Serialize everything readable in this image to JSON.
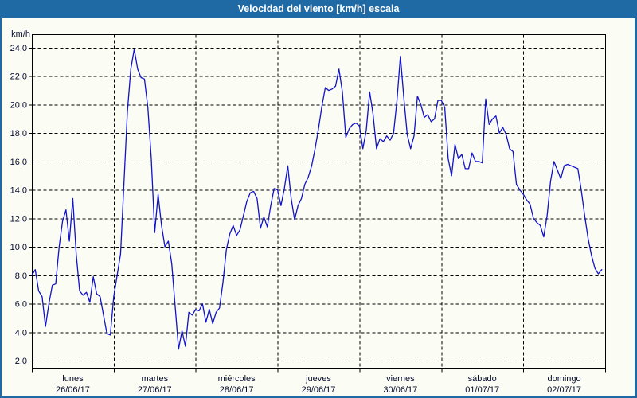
{
  "window": {
    "title": "Velocidad del viento [km/h] escala"
  },
  "chart_data": {
    "type": "line",
    "title": "Velocidad del viento [km/h] escala",
    "xlabel": "",
    "ylabel": "km/h",
    "ylim": [
      2,
      24
    ],
    "y_tick_step": 2,
    "y_tick_labels": [
      "24,0",
      "22,0",
      "20,0",
      "18,0",
      "16,0",
      "14,0",
      "12,0",
      "10,0",
      "8,0",
      "6,0",
      "4,0",
      "2,0"
    ],
    "grid": "dashed-horizontal-and-vertical",
    "legend_position": "none",
    "x_days": [
      {
        "name": "lunes",
        "date": "26/06/17"
      },
      {
        "name": "martes",
        "date": "27/06/17"
      },
      {
        "name": "miércoles",
        "date": "28/06/17"
      },
      {
        "name": "jueves",
        "date": "29/06/17"
      },
      {
        "name": "viernes",
        "date": "30/06/17"
      },
      {
        "name": "sábado",
        "date": "01/07/17"
      },
      {
        "name": "domingo",
        "date": "02/07/17"
      }
    ],
    "series": [
      {
        "name": "Velocidad del viento",
        "unit": "km/h",
        "sampling": "hourly",
        "values": [
          8.0,
          8.4,
          6.9,
          6.5,
          4.4,
          6.0,
          7.3,
          7.4,
          10.0,
          11.8,
          12.6,
          10.4,
          13.4,
          9.5,
          6.9,
          6.6,
          6.8,
          6.1,
          7.9,
          6.7,
          6.5,
          5.2,
          3.9,
          3.8,
          6.5,
          8.0,
          9.5,
          14.5,
          19.5,
          22.5,
          23.9,
          22.5,
          21.9,
          21.8,
          19.8,
          16.2,
          11.0,
          13.7,
          11.5,
          10.0,
          10.4,
          8.8,
          5.8,
          2.8,
          4.1,
          3.0,
          5.4,
          5.2,
          5.6,
          5.5,
          6.0,
          4.7,
          5.6,
          4.6,
          5.4,
          5.7,
          7.5,
          9.8,
          10.9,
          11.5,
          10.8,
          11.2,
          12.2,
          13.2,
          13.8,
          13.9,
          13.4,
          11.3,
          12.1,
          11.4,
          12.9,
          14.1,
          14.0,
          12.9,
          14.1,
          15.7,
          13.4,
          11.9,
          12.9,
          13.4,
          14.4,
          14.9,
          15.7,
          16.9,
          18.3,
          19.9,
          21.2,
          21.0,
          21.1,
          21.3,
          22.5,
          20.9,
          17.7,
          18.3,
          18.6,
          18.7,
          18.5,
          16.9,
          18.2,
          20.9,
          19.3,
          16.9,
          17.6,
          17.4,
          17.8,
          17.5,
          18.0,
          20.3,
          23.4,
          20.5,
          17.9,
          16.9,
          17.8,
          20.6,
          20.0,
          19.1,
          19.3,
          18.8,
          19.0,
          20.3,
          20.3,
          19.8,
          16.2,
          15.0,
          17.2,
          16.2,
          16.5,
          15.5,
          15.5,
          16.6,
          16.0,
          16.0,
          15.9,
          20.4,
          18.6,
          19.0,
          19.2,
          18.0,
          18.4,
          17.9,
          16.9,
          16.7,
          14.4,
          14.0,
          13.7,
          13.3,
          13.0,
          12.0,
          11.7,
          11.5,
          10.7,
          12.2,
          14.6,
          16.0,
          15.4,
          14.8,
          15.7,
          15.8,
          15.7,
          15.6,
          15.5,
          14.0,
          12.2,
          10.6,
          9.4,
          8.5,
          8.1,
          8.4
        ]
      }
    ],
    "colors": {
      "frame": "#1f6aa5",
      "title_text": "#ffffff",
      "background": "#fbfdf5",
      "grid": "#000000",
      "axis": "#000000",
      "text": "#05092e",
      "line": "#1212c8"
    }
  }
}
